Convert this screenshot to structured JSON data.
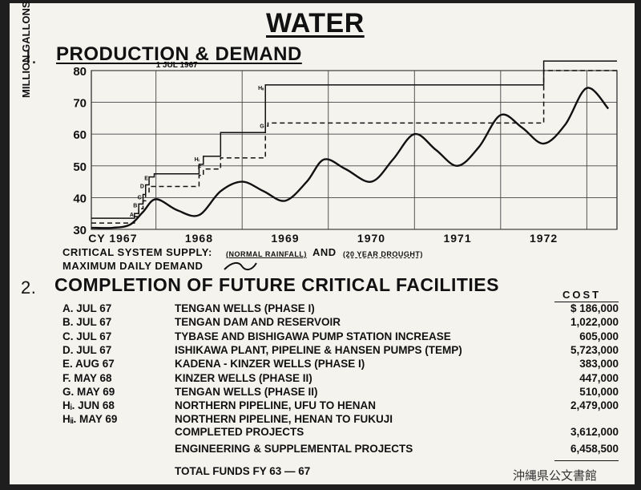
{
  "title": "WATER",
  "section1": {
    "number": "I.",
    "title": "PRODUCTION & DEMAND"
  },
  "legend": {
    "supply_label": "CRITICAL SYSTEM SUPPLY:",
    "normal": "(NORMAL RAINFALL)",
    "and": "AND",
    "drought": "(20 YEAR DROUGHT)",
    "demand_label": "MAXIMUM DAILY DEMAND"
  },
  "chart_data": {
    "type": "line",
    "title": "PRODUCTION & DEMAND",
    "ylabel": "MILLION GALLONS PER DAY",
    "xlabel": "",
    "ylim": [
      30,
      80
    ],
    "xlim": [
      1966.75,
      1972.85
    ],
    "x_ticks": [
      {
        "x": 1967,
        "label": "CY 1967"
      },
      {
        "x": 1968,
        "label": "1968"
      },
      {
        "x": 1969,
        "label": "1969"
      },
      {
        "x": 1970,
        "label": "1970"
      },
      {
        "x": 1971,
        "label": "1971"
      },
      {
        "x": 1972,
        "label": "1972"
      }
    ],
    "y_ticks": [
      30,
      40,
      50,
      60,
      70,
      80
    ],
    "grid": true,
    "annotations": [
      {
        "x": 1967.5,
        "y": 81,
        "text": "1 JUL 1967"
      }
    ],
    "series": [
      {
        "name": "CRITICAL SYSTEM SUPPLY (NORMAL RAINFALL)",
        "style": "step-solid",
        "x": [
          1966.75,
          1967.25,
          1967.25,
          1967.3,
          1967.3,
          1967.35,
          1967.35,
          1967.38,
          1967.38,
          1967.42,
          1967.42,
          1967.48,
          1967.48,
          1968.0,
          1968.0,
          1968.05,
          1968.05,
          1968.25,
          1968.25,
          1968.77,
          1968.77,
          1968.8,
          1968.8,
          1969.35,
          1969.35,
          1971.5,
          1971.5,
          1972.0,
          1972.0,
          1972.4,
          1972.4,
          1972.85
        ],
        "y": [
          33.5,
          33.5,
          35,
          35,
          38,
          38,
          41,
          41,
          44,
          44,
          46.5,
          46.5,
          47.5,
          47.5,
          50.5,
          50.5,
          53,
          53,
          60.5,
          60.5,
          75.5,
          75.5,
          75.5,
          75.5,
          75.5,
          75.5,
          75.5,
          75.5,
          83,
          83,
          83,
          83
        ]
      },
      {
        "name": "CRITICAL SYSTEM SUPPLY (20 YEAR DROUGHT)",
        "style": "step-dashed",
        "x": [
          1966.75,
          1967.25,
          1967.25,
          1967.3,
          1967.3,
          1967.35,
          1967.35,
          1967.38,
          1967.38,
          1967.42,
          1967.42,
          1968.0,
          1968.0,
          1968.05,
          1968.05,
          1968.25,
          1968.25,
          1968.77,
          1968.77,
          1968.8,
          1968.8,
          1972.0,
          1972.0,
          1972.4,
          1972.4,
          1972.85
        ],
        "y": [
          32,
          32,
          34,
          34,
          36.5,
          36.5,
          39,
          39,
          41.5,
          41.5,
          43.5,
          43.5,
          47,
          47,
          49,
          49,
          52.5,
          52.5,
          62.5,
          62.5,
          63.5,
          63.5,
          80,
          80,
          80,
          80
        ]
      },
      {
        "name": "MAXIMUM DAILY DEMAND",
        "style": "curve",
        "x": [
          1966.75,
          1967.0,
          1967.2,
          1967.35,
          1967.5,
          1967.75,
          1968.0,
          1968.25,
          1968.5,
          1968.75,
          1969.0,
          1969.25,
          1969.45,
          1969.7,
          1970.0,
          1970.25,
          1970.5,
          1970.75,
          1971.0,
          1971.25,
          1971.5,
          1971.75,
          1972.0,
          1972.25,
          1972.5,
          1972.75
        ],
        "y": [
          30.5,
          30.5,
          31.5,
          35.5,
          39.5,
          36,
          34.5,
          42,
          45,
          42,
          39,
          45,
          52,
          49,
          45,
          52,
          60,
          55,
          50,
          56,
          66,
          62,
          57,
          63,
          74.5,
          68
        ]
      }
    ],
    "point_labels": [
      "A",
      "B",
      "C",
      "D",
      "E",
      "F",
      "G",
      "Hᵢ",
      "Hᵢᵢ"
    ]
  },
  "section2": {
    "number": "2.",
    "title": "COMPLETION OF FUTURE CRITICAL FACILITIES",
    "cost_header": "COST",
    "items": [
      {
        "code": "A.",
        "date": "JUL 67",
        "project": "TENGAN WELLS (PHASE I)",
        "cost": "$ 186,000"
      },
      {
        "code": "B.",
        "date": "JUL 67",
        "project": "TENGAN DAM AND RESERVOIR",
        "cost": "1,022,000"
      },
      {
        "code": "C.",
        "date": "JUL 67",
        "project": "TYBASE AND BISHIGAWA PUMP STATION INCREASE",
        "cost": "605,000"
      },
      {
        "code": "D.",
        "date": "JUL 67",
        "project": "ISHIKAWA PLANT, PIPELINE & HANSEN PUMPS (TEMP)",
        "cost": "5,723,000"
      },
      {
        "code": "E.",
        "date": "AUG 67",
        "project": "KADENA - KINZER WELLS (PHASE I)",
        "cost": "383,000"
      },
      {
        "code": "F.",
        "date": "MAY 68",
        "project": "KINZER WELLS (PHASE II)",
        "cost": "447,000"
      },
      {
        "code": "G.",
        "date": "MAY 69",
        "project": "TENGAN WELLS (PHASE II)",
        "cost": "510,000"
      },
      {
        "code": "Hᵢ.",
        "date": "JUN 68",
        "project": "NORTHERN PIPELINE, UFU TO HENAN",
        "cost": "2,479,000"
      },
      {
        "code": "Hᵢᵢ.",
        "date": "MAY 69",
        "project": "NORTHERN PIPELINE, HENAN TO FUKUJI",
        "cost": ""
      }
    ],
    "completed_label": "COMPLETED PROJECTS",
    "completed_cost": "3,612,000",
    "engineering_label": "ENGINEERING & SUPPLEMENTAL PROJECTS",
    "engineering_cost": "6,458,500",
    "total_label": "TOTAL FUNDS FY 63 — 67",
    "total_cost": ""
  },
  "stamp": "沖縄県公文書館"
}
